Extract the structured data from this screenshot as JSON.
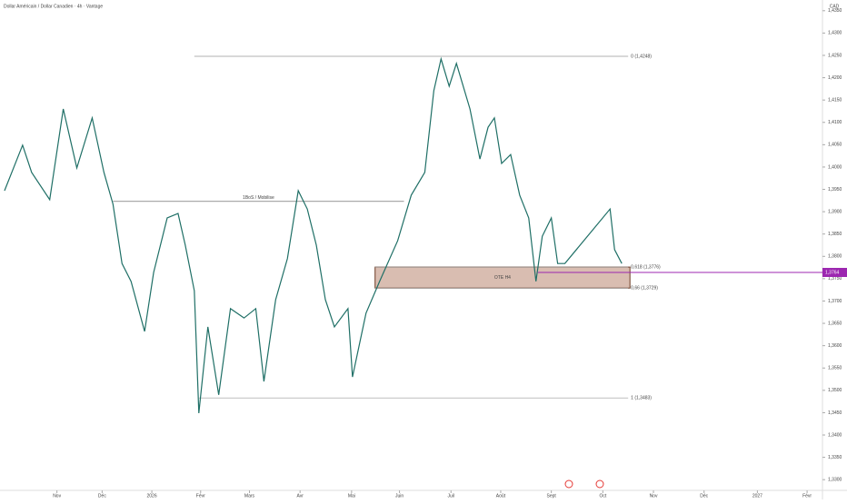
{
  "chart_data": {
    "type": "line",
    "title": "Dollar Américain / Dollar Canadien · 4h · Vantage",
    "y_unit": "CAD",
    "x": [
      0,
      20,
      30,
      50,
      65,
      80,
      97,
      110,
      120,
      130,
      140,
      155,
      165,
      180,
      192,
      200,
      210,
      215,
      225,
      237,
      250,
      265,
      278,
      287,
      300,
      313,
      325,
      335,
      345,
      355,
      365,
      380,
      385,
      400,
      415,
      435,
      450,
      465,
      475,
      483,
      492,
      500,
      515,
      526,
      535,
      542,
      550,
      560,
      570,
      580,
      588,
      595,
      605,
      612,
      620,
      670,
      675,
      683
    ],
    "series": [
      {
        "name": "USDCAD",
        "color": "#1f6f66",
        "values": [
          1.3947,
          1.4049,
          1.3988,
          1.3927,
          1.413,
          1.3998,
          1.411,
          1.3988,
          1.3917,
          1.3784,
          1.3744,
          1.3632,
          1.3764,
          1.3886,
          1.3896,
          1.3825,
          1.3723,
          1.3449,
          1.3642,
          1.349,
          1.3683,
          1.3662,
          1.3683,
          1.352,
          1.3703,
          1.3795,
          1.3947,
          1.3906,
          1.3825,
          1.3703,
          1.3642,
          1.3683,
          1.353,
          1.3673,
          1.3744,
          1.3835,
          1.3937,
          1.3988,
          1.4171,
          1.4242,
          1.4181,
          1.4232,
          1.413,
          1.4018,
          1.4089,
          1.411,
          1.4008,
          1.4028,
          1.3937,
          1.3886,
          1.3744,
          1.3845,
          1.3886,
          1.3784,
          1.3784,
          1.3906,
          1.3815,
          1.3784
        ]
      }
    ],
    "xlim": [
      -5,
      905
    ],
    "xticks": [
      {
        "value": 58,
        "label": "Nov"
      },
      {
        "value": 108,
        "label": "Déc"
      },
      {
        "value": 163,
        "label": "2026"
      },
      {
        "value": 217,
        "label": "Févr"
      },
      {
        "value": 271,
        "label": "Mars"
      },
      {
        "value": 327,
        "label": "Avr"
      },
      {
        "value": 384,
        "label": "Mai"
      },
      {
        "value": 437,
        "label": "Juin"
      },
      {
        "value": 494,
        "label": "Juil"
      },
      {
        "value": 549,
        "label": "Août"
      },
      {
        "value": 605,
        "label": "Sept"
      },
      {
        "value": 662,
        "label": "Oct"
      },
      {
        "value": 718,
        "label": "Nov"
      },
      {
        "value": 774,
        "label": "Déc"
      },
      {
        "value": 833,
        "label": "2027"
      },
      {
        "value": 888,
        "label": "Févr"
      }
    ],
    "ylim": [
      1.3276,
      1.4374
    ],
    "yticks": [
      {
        "value": 1.33,
        "label": "1,3300"
      },
      {
        "value": 1.335,
        "label": "1,3350"
      },
      {
        "value": 1.34,
        "label": "1,3400"
      },
      {
        "value": 1.345,
        "label": "1,3450"
      },
      {
        "value": 1.35,
        "label": "1,3500"
      },
      {
        "value": 1.355,
        "label": "1,3550"
      },
      {
        "value": 1.36,
        "label": "1,3600"
      },
      {
        "value": 1.365,
        "label": "1,3650"
      },
      {
        "value": 1.37,
        "label": "1,3700"
      },
      {
        "value": 1.375,
        "label": "1,3750"
      },
      {
        "value": 1.38,
        "label": "1,3800"
      },
      {
        "value": 1.385,
        "label": "1,3850"
      },
      {
        "value": 1.39,
        "label": "1,3900"
      },
      {
        "value": 1.395,
        "label": "1,3950"
      },
      {
        "value": 1.4,
        "label": "1,4000"
      },
      {
        "value": 1.405,
        "label": "1,4050"
      },
      {
        "value": 1.41,
        "label": "1,4100"
      },
      {
        "value": 1.415,
        "label": "1,4150"
      },
      {
        "value": 1.42,
        "label": "1,4200"
      },
      {
        "value": 1.425,
        "label": "1,4250"
      },
      {
        "value": 1.43,
        "label": "1,4300"
      },
      {
        "value": 1.435,
        "label": "1,4350"
      }
    ],
    "levels": [
      {
        "label": "0 (1,4248)",
        "value": 1.4248,
        "x": [
          210,
          690
        ]
      },
      {
        "label": "1 (1,3483)",
        "value": 1.3483,
        "x": [
          215,
          690
        ]
      },
      {
        "label": "0,618 (1,3776)",
        "value": 1.3776,
        "x": [
          410,
          690
        ]
      },
      {
        "label": "0,66 (1,3729)",
        "value": 1.3729,
        "x": [
          410,
          690
        ]
      },
      {
        "label": "1BoS / Mobilise",
        "value": 1.3923,
        "x": [
          120,
          442
        ]
      }
    ],
    "zone": {
      "label": "OTE H4",
      "range": [
        1.3729,
        1.3776
      ],
      "x": [
        410,
        692
      ]
    },
    "last_price": {
      "value": 1.3764,
      "label": "1,3764",
      "color": "#9c27b0"
    }
  }
}
